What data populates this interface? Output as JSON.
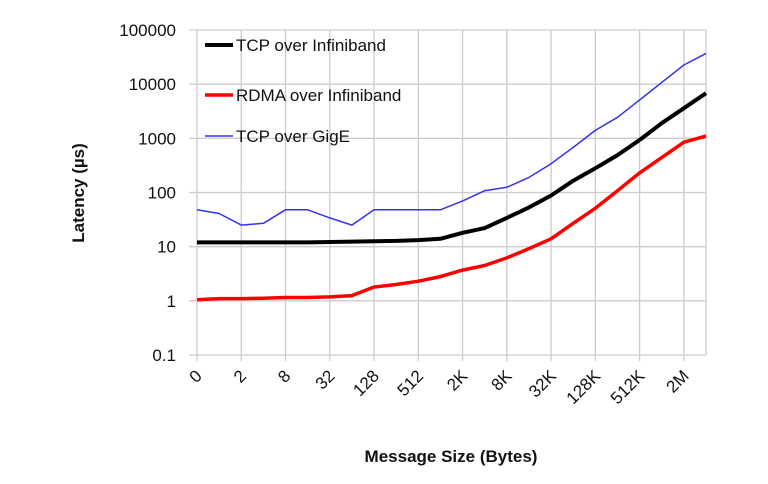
{
  "chart_data": {
    "type": "line",
    "title": "",
    "xlabel": "Message Size (Bytes)",
    "ylabel": "Latency (µs)",
    "yscale": "log",
    "ylim": [
      0.1,
      100000
    ],
    "yticks": [
      "0.1",
      "1",
      "10",
      "100",
      "1000",
      "10000",
      "100000"
    ],
    "grid": true,
    "legend_position": "top-left",
    "x": [
      "0",
      "1",
      "2",
      "4",
      "8",
      "16",
      "32",
      "64",
      "128",
      "256",
      "512",
      "1K",
      "2K",
      "4K",
      "8K",
      "16K",
      "32K",
      "64K",
      "128K",
      "256K",
      "512K",
      "1M",
      "2M",
      "4M"
    ],
    "xtick_labels": [
      "0",
      "2",
      "8",
      "32",
      "128",
      "512",
      "2K",
      "8K",
      "32K",
      "128K",
      "512K",
      "2M"
    ],
    "series": [
      {
        "name": "TCP over Infiniband",
        "color": "#000000",
        "values": [
          12,
          12,
          12,
          12,
          12,
          12,
          12.2,
          12.4,
          12.6,
          12.8,
          13.2,
          14,
          18,
          22,
          34,
          53,
          88,
          165,
          280,
          490,
          930,
          1900,
          3600,
          6800
        ]
      },
      {
        "name": "RDMA over Infiniband",
        "color": "#ff0000",
        "values": [
          1.05,
          1.1,
          1.1,
          1.12,
          1.15,
          1.15,
          1.18,
          1.25,
          1.8,
          2.0,
          2.3,
          2.8,
          3.7,
          4.5,
          6.2,
          9.2,
          14,
          27,
          51,
          108,
          230,
          440,
          850,
          1100
        ]
      },
      {
        "name": "TCP over GigE",
        "color": "#3333ee",
        "values": [
          48,
          41,
          25,
          27,
          48,
          48,
          34,
          25,
          48,
          48,
          48,
          48,
          70,
          108,
          125,
          190,
          340,
          680,
          1400,
          2450,
          5100,
          10800,
          22600,
          37000
        ]
      }
    ]
  }
}
